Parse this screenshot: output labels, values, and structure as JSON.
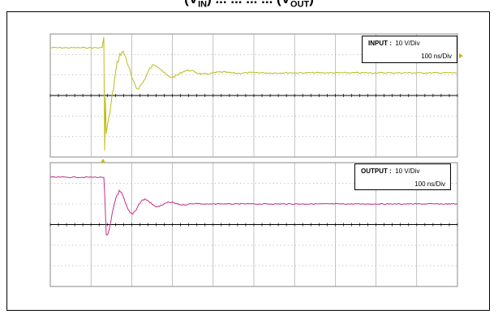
{
  "title": {
    "prefix": "(V",
    "sub1": "IN",
    "middle": ") ... ... ... ...  (V",
    "sub2": "OUT",
    "suffix": ")"
  },
  "scope": {
    "grid_divisions_x": 10,
    "grid_divisions_y": 6,
    "grid_color": "#9a9a9a",
    "axis_color": "#000000"
  },
  "input_panel": {
    "label": "INPUT :",
    "volts_per_div": "10 V/Div",
    "time_per_div": "100 ns/Div",
    "trace_color": "#bcbc1a",
    "marker_icon": "triangle-marker"
  },
  "output_panel": {
    "label": "OUTPUT :",
    "volts_per_div": "10 V/Div",
    "time_per_div": "100 ns/Div",
    "trace_color": "#c0308a"
  }
}
